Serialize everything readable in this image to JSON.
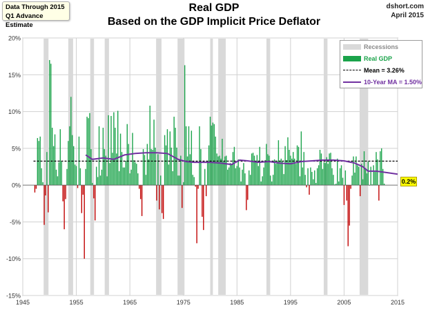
{
  "note": {
    "line1": "Data Through 2015",
    "line2": "Q1 Advance Estimate"
  },
  "source": {
    "site": "dshort.com",
    "date": "April 2015"
  },
  "colors": {
    "positive": "#1aa34a",
    "negative": "#c00000",
    "recession": "#d9d9d9",
    "mean": "#000000",
    "ma": "#7030a0",
    "last_label_bg": "#ffff00"
  },
  "chart_data": {
    "type": "bar",
    "title": "Real GDP",
    "subtitle": "Based on the GDP Implicit Price Deflator",
    "xlabel": "",
    "ylabel": "",
    "xlim": [
      1945,
      2015
    ],
    "ylim": [
      -15,
      20
    ],
    "x_ticks": [
      "1945",
      "1955",
      "1965",
      "1975",
      "1985",
      "1995",
      "2005",
      "2015"
    ],
    "y_ticks": [
      "20%",
      "15%",
      "10%",
      "5%",
      "0%",
      "-5%",
      "-10%",
      "-15%"
    ],
    "grid": true,
    "legend_position": "top-right",
    "legend": {
      "recessions": "Recessions",
      "gdp": "Real GDP",
      "mean": "Mean = 3.26%",
      "ma": "10-Year MA = 1.50%"
    },
    "mean": 3.26,
    "last_value_label": "0.2%",
    "recessions": [
      [
        1948.9,
        1949.8
      ],
      [
        1953.5,
        1954.4
      ],
      [
        1957.6,
        1958.3
      ],
      [
        1960.3,
        1961.1
      ],
      [
        1969.9,
        1970.9
      ],
      [
        1973.9,
        1975.2
      ],
      [
        1980.0,
        1980.5
      ],
      [
        1981.5,
        1982.9
      ],
      [
        1990.5,
        1991.2
      ],
      [
        2001.2,
        2001.9
      ],
      [
        2007.9,
        2009.5
      ]
    ],
    "series": [
      {
        "name": "Real GDP",
        "start": 1947.25,
        "step": 0.25,
        "values": [
          -1.0,
          -0.5,
          6.4,
          6.0,
          6.6,
          2.3,
          0.4,
          -5.4,
          -1.4,
          4.5,
          -3.7,
          17.0,
          16.5,
          7.8,
          5.3,
          6.9,
          2.1,
          1.2,
          3.1,
          7.6,
          3.2,
          -2.2,
          -6.0,
          -1.9,
          2.2,
          6.0,
          8.0,
          12.0,
          6.8,
          5.3,
          2.8,
          2.6,
          -0.4,
          6.6,
          2.3,
          -3.8,
          -1.3,
          -10.0,
          2.2,
          9.3,
          9.1,
          9.8,
          4.9,
          0.3,
          -1.8,
          -4.8,
          2.5,
          1.1,
          8.0,
          1.3,
          2.1,
          7.8,
          4.9,
          4.0,
          1.2,
          9.5,
          3.0,
          9.4,
          4.4,
          9.9,
          7.8,
          4.3,
          10.1,
          1.9,
          7.0,
          4.5,
          2.4,
          2.4,
          3.3,
          8.3,
          5.6,
          1.6,
          2.1,
          7.1,
          3.4,
          3.1,
          2.9,
          1.6,
          -0.5,
          -1.9,
          -4.2,
          4.9,
          4.1,
          1.4,
          5.6,
          3.5,
          10.8,
          4.9,
          4.8,
          8.9,
          5.1,
          -2.1,
          4.2,
          -3.3,
          1.3,
          -3.8,
          -4.6,
          6.8,
          5.4,
          7.6,
          2.8,
          7.3,
          5.1,
          1.9,
          9.3,
          7.8,
          5.1,
          1.3,
          1.3,
          4.0,
          -3.1,
          0.4,
          16.3,
          8.0,
          3.9,
          8.0,
          4.2,
          7.4,
          1.4,
          1.1,
          -0.2,
          -7.9,
          -0.5,
          8.0,
          4.9,
          -4.3,
          -6.1,
          2.2,
          -1.5,
          3.2,
          5.4,
          9.3,
          8.1,
          8.5,
          8.3,
          6.6,
          4.3,
          3.9,
          4.0,
          3.6,
          6.3,
          3.2,
          3.9,
          4.0,
          2.1,
          2.4,
          3.0,
          2.8,
          4.5,
          5.2,
          2.3,
          2.6,
          3.5,
          2.4,
          0.5,
          2.1,
          3.0,
          1.6,
          -3.4,
          -2.0,
          2.0,
          1.4,
          4.3,
          4.4,
          4.0,
          3.2,
          4.1,
          2.6,
          5.2,
          0.5,
          1.2,
          2.4,
          3.4,
          5.6,
          4.2,
          4.0,
          1.3,
          0.5,
          1.4,
          3.5,
          2.9,
          3.3,
          6.1,
          3.2,
          3.6,
          3.2,
          1.5,
          5.3,
          3.4,
          6.5,
          4.8,
          4.0,
          3.6,
          4.5,
          3.6,
          2.9,
          5.4,
          5.2,
          1.2,
          7.3,
          2.4,
          4.5,
          1.4,
          -0.3,
          2.3,
          -1.3,
          2.4,
          1.8,
          0.8,
          2.0,
          0.3,
          2.3,
          2.7,
          4.8,
          4.3,
          2.2,
          3.1,
          3.0,
          3.8,
          2.9,
          4.3,
          4.4,
          2.3,
          1.4,
          0.1,
          0.2,
          3.6,
          0.5,
          2.3,
          2.7,
          1.0,
          -2.7,
          2.0,
          -2.1,
          -8.3,
          -5.5,
          -0.5,
          1.3,
          3.9,
          1.7,
          3.9,
          2.7,
          2.5,
          -1.5,
          2.9,
          0.8,
          4.6,
          2.3,
          1.6,
          3.2,
          0.0,
          2.5,
          0.1,
          2.7,
          1.8,
          4.5,
          3.5,
          -2.1,
          4.6,
          5.0,
          2.2,
          0.2
        ]
      },
      {
        "name": "10-Year MA",
        "x": [
          1956.75,
          1958,
          1960,
          1962,
          1964,
          1966,
          1968,
          1970,
          1972,
          1974,
          1975.5,
          1977,
          1980,
          1982,
          1984,
          1985.5,
          1987,
          1989,
          1991,
          1993,
          1995,
          1997,
          1999,
          2001,
          2003,
          2005,
          2007,
          2008.5,
          2009.5,
          2011,
          2013,
          2015
        ],
        "values": [
          4.1,
          3.5,
          3.7,
          3.5,
          4.1,
          4.3,
          4.4,
          4.4,
          4.3,
          3.5,
          3.2,
          3.1,
          3.1,
          3.0,
          2.8,
          3.4,
          3.3,
          3.1,
          3.2,
          3.0,
          2.9,
          3.2,
          3.3,
          3.4,
          3.4,
          3.3,
          3.0,
          2.5,
          1.9,
          1.9,
          1.7,
          1.5
        ]
      }
    ]
  }
}
